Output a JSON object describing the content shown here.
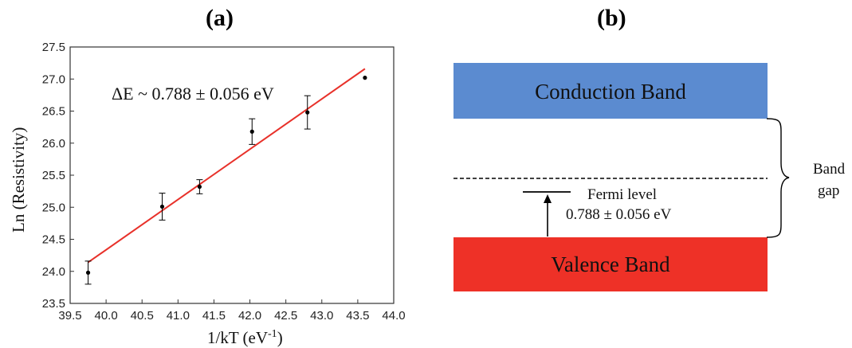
{
  "panels": {
    "a_label": "(a)",
    "b_label": "(b)"
  },
  "chart_data": {
    "type": "scatter",
    "xlabel": "1/kT (eV",
    "xlabel_sup": "-1",
    "xlabel_close": ")",
    "ylabel": "Ln (Resistivity)",
    "xlim": [
      39.5,
      44.0
    ],
    "ylim": [
      23.5,
      27.5
    ],
    "x_ticks": [
      "39.5",
      "40.0",
      "40.5",
      "41.0",
      "41.5",
      "42.0",
      "42.5",
      "43.0",
      "43.5",
      "44.0"
    ],
    "y_ticks": [
      "23.5",
      "24.0",
      "24.5",
      "25.0",
      "25.5",
      "26.0",
      "26.5",
      "27.0",
      "27.5"
    ],
    "grid": false,
    "points": [
      {
        "x": 39.75,
        "y": 23.98,
        "err": 0.18
      },
      {
        "x": 40.78,
        "y": 25.01,
        "err": 0.21
      },
      {
        "x": 41.3,
        "y": 25.32,
        "err": 0.11
      },
      {
        "x": 42.03,
        "y": 26.18,
        "err": 0.2
      },
      {
        "x": 42.8,
        "y": 26.48,
        "err": 0.26
      },
      {
        "x": 43.6,
        "y": 27.02,
        "err": 0
      }
    ],
    "fit_line": {
      "x": [
        39.75,
        43.6
      ],
      "y": [
        24.14,
        27.16
      ],
      "color": "#e8312a"
    },
    "annotation": "ΔE ~ 0.788 ± 0.056 eV"
  },
  "diagram": {
    "conduction_band": {
      "label": "Conduction Band",
      "color": "#5b8bd0"
    },
    "valence_band": {
      "label": "Valence Band",
      "color": "#ee3127"
    },
    "fermi_label": "Fermi level",
    "fermi_value": "0.788 ± 0.056 eV",
    "band_gap_label_1": "Band",
    "band_gap_label_2": "gap"
  }
}
